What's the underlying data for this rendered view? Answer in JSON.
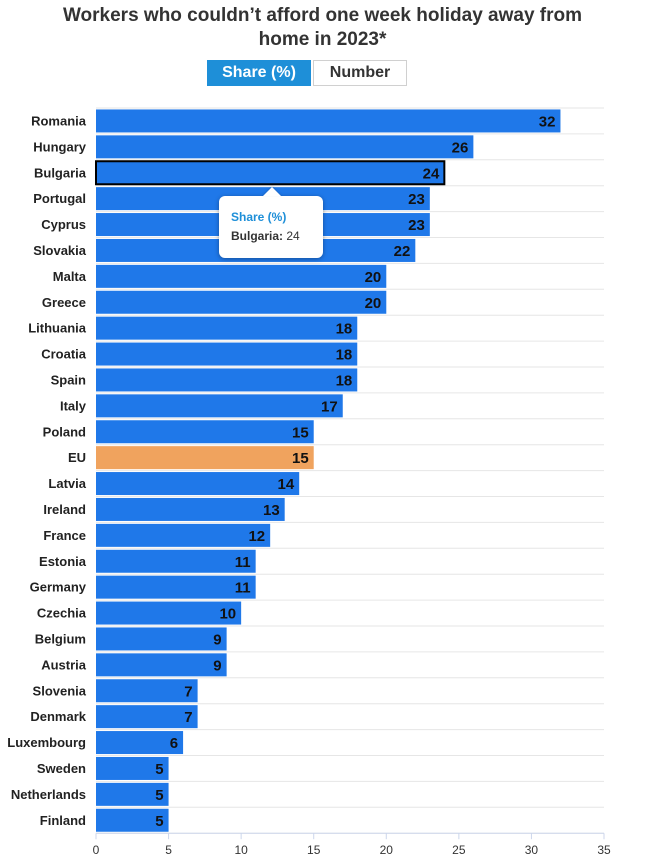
{
  "header": {
    "title_line1": "Workers who couldn’t afford one week holiday away from",
    "title_line2": "home in 2023*"
  },
  "toggle": {
    "share_label": "Share (%)",
    "number_label": "Number"
  },
  "tooltip": {
    "series": "Share (%)",
    "category": "Bulgaria:",
    "value": "24"
  },
  "colors": {
    "bar": "#1f78e9",
    "highlight": "#f0a35e",
    "selected_outline": "#000000"
  },
  "chart_data": {
    "type": "bar",
    "orientation": "horizontal",
    "title": "Workers who couldn’t afford one week holiday away from home in 2023*",
    "series_name": "Share (%)",
    "categories": [
      "Romania",
      "Hungary",
      "Bulgaria",
      "Portugal",
      "Cyprus",
      "Slovakia",
      "Malta",
      "Greece",
      "Lithuania",
      "Croatia",
      "Spain",
      "Italy",
      "Poland",
      "EU",
      "Latvia",
      "Ireland",
      "France",
      "Estonia",
      "Germany",
      "Czechia",
      "Belgium",
      "Austria",
      "Slovenia",
      "Denmark",
      "Luxembourg",
      "Sweden",
      "Netherlands",
      "Finland"
    ],
    "values": [
      32,
      26,
      24,
      23,
      23,
      22,
      20,
      20,
      18,
      18,
      18,
      17,
      15,
      15,
      14,
      13,
      12,
      11,
      11,
      10,
      9,
      9,
      7,
      7,
      6,
      5,
      5,
      5
    ],
    "highlighted_category": "EU",
    "selected_category": "Bulgaria",
    "xlim": [
      0,
      35
    ],
    "xticks": [
      0,
      5,
      10,
      15,
      20,
      25,
      30,
      35
    ],
    "xlabel": "",
    "ylabel": "",
    "grid": true
  }
}
